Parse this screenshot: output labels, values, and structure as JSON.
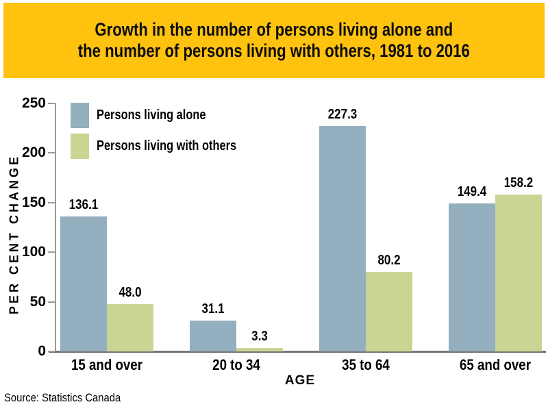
{
  "banner": {
    "background": "#FFC20E"
  },
  "chart_data": {
    "type": "bar",
    "title": "Growth in the number of persons living alone and the number of persons living with others, 1981 to 2016",
    "title_lines": [
      "Growth in the number of persons living alone and",
      "the number of persons living with others, 1981 to 2016"
    ],
    "categories": [
      "15 and over",
      "20 to 34",
      "35 to 64",
      "65 and over"
    ],
    "series": [
      {
        "name": "Persons living alone",
        "color": "#94AFBF",
        "values": [
          136.1,
          31.1,
          227.3,
          149.4
        ],
        "labels": [
          "136.1",
          "31.1",
          "227.3",
          "149.4"
        ]
      },
      {
        "name": "Persons living with others",
        "color": "#CBD593",
        "values": [
          48.0,
          3.3,
          80.2,
          158.2
        ],
        "labels": [
          "48.0",
          "3.3",
          "80.2",
          "158.2"
        ]
      }
    ],
    "xlabel": "AGE",
    "ylabel": "PER CENT CHANGE",
    "ylim": [
      0,
      250
    ],
    "yticks": [
      0,
      50,
      100,
      150,
      200,
      250
    ],
    "grid": false,
    "legend_position": "top-left",
    "data_labels": true,
    "axis_color": "#9a9a9a",
    "baseline_color": "#757575"
  },
  "source": "Source: Statistics Canada"
}
